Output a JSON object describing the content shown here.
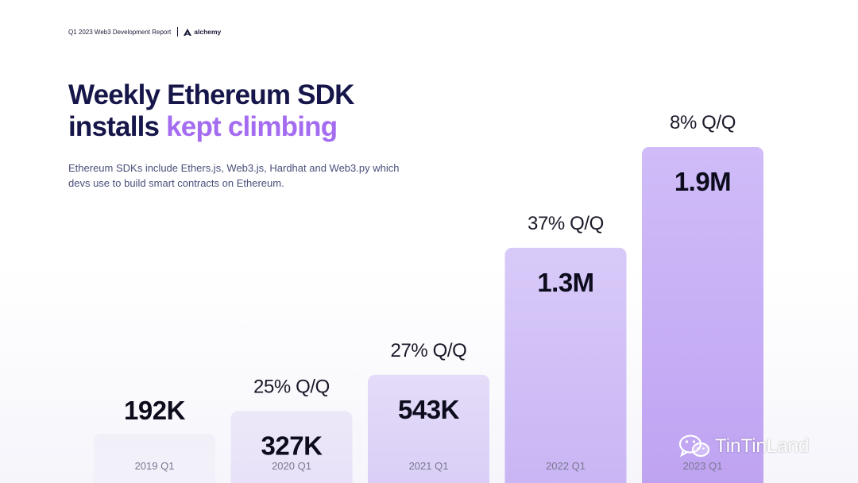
{
  "header": {
    "report_title": "Q1 2023 Web3 Development Report",
    "brand": "alchemy"
  },
  "headline": {
    "line1": "Weekly Ethereum SDK",
    "line2_plain": "installs ",
    "line2_accent": "kept climbing"
  },
  "description": "Ethereum SDKs include Ethers.js, Web3.js, Hardhat and Web3.py which devs use to build smart contracts on Ethereum.",
  "chart_data": {
    "type": "bar",
    "categories": [
      "2019 Q1",
      "2020 Q1",
      "2021 Q1",
      "2022 Q1",
      "2023 Q1"
    ],
    "values": [
      192000,
      327000,
      543000,
      1300000,
      1900000
    ],
    "value_labels": [
      "192K",
      "327K",
      "543K",
      "1.3M",
      "1.9M"
    ],
    "growth_labels": [
      "",
      "25% Q/Q",
      "27% Q/Q",
      "37% Q/Q",
      "8% Q/Q"
    ],
    "title": "Weekly Ethereum SDK installs kept climbing",
    "xlabel": "",
    "ylabel": "",
    "grid": false,
    "colors": {
      "bar_top": [
        "#f1eff8",
        "#ece8f8",
        "#e4dcf8",
        "#d8caf8",
        "#d0bcf8"
      ],
      "bar_bottom": [
        "#f3f1fa",
        "#e6e0f8",
        "#d8ccf6",
        "#c8b4f4",
        "#bea2f2"
      ],
      "value_text": "#0c0c1c",
      "growth_text": "#1a1a2a",
      "category_text": "#7a7890"
    }
  },
  "watermark": {
    "text": "TinTinLand"
  }
}
